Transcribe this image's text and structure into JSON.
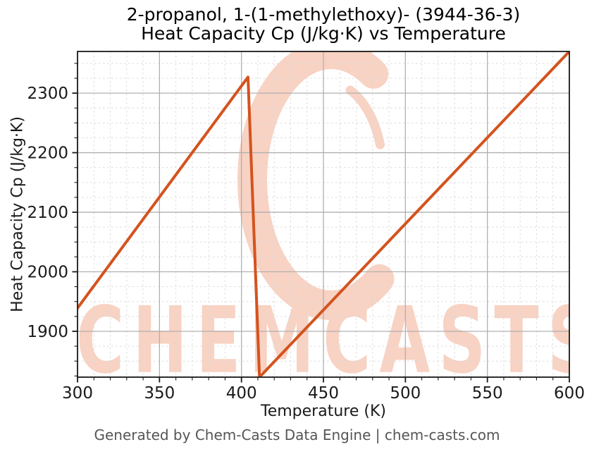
{
  "title": {
    "line1": "2-propanol, 1-(1-methylethoxy)- (3944-36-3)",
    "line2": "Heat Capacity Cp (J/kg·K) vs Temperature"
  },
  "axes": {
    "xlabel": "Temperature (K)",
    "ylabel": "Heat Capacity Cp (J/kg·K)"
  },
  "footer": {
    "text": "Generated by Chem-Casts Data Engine | chem-casts.com"
  },
  "watermark": {
    "text": "CHEMCASTS",
    "swirl_icon": "brush-circle-c-logo",
    "color": "#f8d2c3"
  },
  "colors": {
    "line": "#d4531e",
    "major_grid": "#b0b0b0",
    "minor_grid": "#dcdcdc",
    "axis": "#1a1a1a",
    "title_text": "#000000",
    "footer_text": "#555555",
    "watermark": "#f8d2c3",
    "background": "#ffffff"
  },
  "chart_data": {
    "type": "line",
    "title": "2-propanol, 1-(1-methylethoxy)- (3944-36-3)",
    "subtitle": "Heat Capacity Cp (J/kg·K) vs Temperature",
    "xlabel": "Temperature (K)",
    "ylabel": "Heat Capacity Cp (J/kg·K)",
    "xlim": [
      300,
      600
    ],
    "ylim": [
      1823,
      2370
    ],
    "xticks": [
      300,
      350,
      400,
      450,
      500,
      550,
      600
    ],
    "yticks": [
      1900,
      2000,
      2100,
      2200,
      2300
    ],
    "x_minor_step": 10,
    "y_minor_step": 25,
    "grid": true,
    "legend": false,
    "series": [
      {
        "name": "Heat Capacity Cp",
        "color": "#d4531e",
        "line_width": 4,
        "points": [
          [
            300,
            1939
          ],
          [
            404,
            2327
          ],
          [
            411,
            1823
          ],
          [
            600,
            2370
          ]
        ]
      }
    ]
  }
}
